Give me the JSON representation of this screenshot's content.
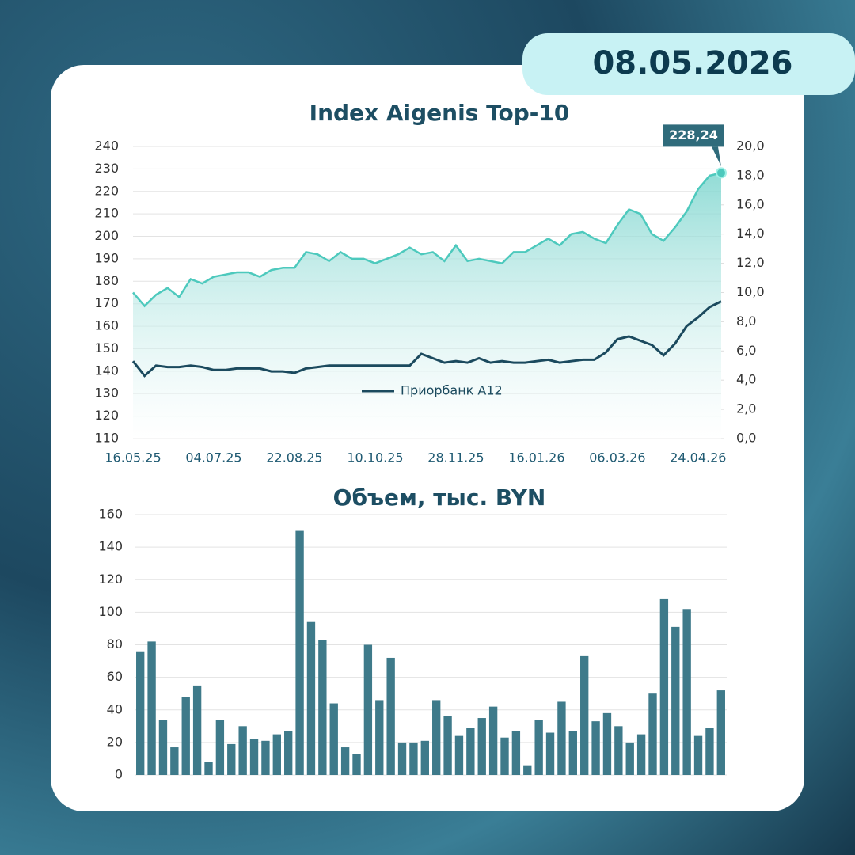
{
  "date": "08.05.2026",
  "chart_data": [
    {
      "type": "line",
      "title": "Index Aigenis Top-10",
      "categories": [
        "16.05.25",
        null,
        null,
        null,
        null,
        null,
        null,
        "04.07.25",
        null,
        null,
        null,
        null,
        null,
        null,
        "22.08.25",
        null,
        null,
        null,
        null,
        null,
        null,
        "10.10.25",
        null,
        null,
        null,
        null,
        null,
        null,
        "28.11.25",
        null,
        null,
        null,
        null,
        null,
        null,
        "16.01.26",
        null,
        null,
        null,
        null,
        null,
        null,
        "06.03.26",
        null,
        null,
        null,
        null,
        null,
        null,
        "24.04.26",
        null,
        null
      ],
      "series": [
        {
          "color": "#4dc9bd",
          "fill": true,
          "values": [
            175,
            169,
            174,
            177,
            173,
            181,
            179,
            182,
            183,
            184,
            184,
            182,
            185,
            186,
            186,
            193,
            192,
            189,
            193,
            190,
            190,
            188,
            190,
            192,
            195,
            192,
            193,
            189,
            196,
            189,
            190,
            189,
            188,
            193,
            193,
            196,
            199,
            196,
            201,
            202,
            199,
            197,
            205,
            212,
            210,
            201,
            198,
            204,
            211,
            221,
            227,
            228.24
          ],
          "value_labels": [
            null,
            null,
            null,
            null,
            null,
            null,
            null,
            null,
            null,
            null,
            null,
            null,
            null,
            null,
            null,
            null,
            null,
            null,
            null,
            null,
            null,
            null,
            null,
            null,
            null,
            null,
            null,
            null,
            null,
            null,
            null,
            null,
            null,
            null,
            null,
            null,
            null,
            null,
            null,
            null,
            null,
            null,
            null,
            null,
            null,
            null,
            null,
            null,
            null,
            null,
            null,
            "228,24"
          ]
        },
        {
          "name": "Приорбанк A12",
          "color": "#1b4a5e",
          "axis": "y2",
          "values": [
            5.3,
            4.3,
            5.0,
            4.9,
            4.9,
            5.0,
            4.9,
            4.7,
            4.7,
            4.8,
            4.8,
            4.8,
            4.6,
            4.6,
            4.5,
            4.8,
            4.9,
            5.0,
            5.0,
            5.0,
            5.0,
            5.0,
            5.0,
            5.0,
            5.0,
            5.8,
            5.5,
            5.2,
            5.3,
            5.2,
            5.5,
            5.2,
            5.3,
            5.2,
            5.2,
            5.3,
            5.4,
            5.2,
            5.3,
            5.4,
            5.4,
            5.9,
            6.8,
            7.0,
            6.7,
            6.4,
            5.7,
            6.5,
            7.7,
            8.3,
            9.0,
            9.4
          ]
        }
      ],
      "ylim": [
        110,
        240
      ],
      "yticks": [
        110,
        120,
        130,
        140,
        150,
        160,
        170,
        180,
        190,
        200,
        210,
        220,
        230,
        240
      ],
      "y2lim": [
        0,
        20
      ],
      "y2ticks": [
        {
          "value": 0,
          "label": "0,0"
        },
        {
          "value": 2,
          "label": "2,0"
        },
        {
          "value": 4,
          "label": "4,0"
        },
        {
          "value": 6,
          "label": "6,0"
        },
        {
          "value": 8,
          "label": "8,0"
        },
        {
          "value": 10,
          "label": "10,0"
        },
        {
          "value": 12,
          "label": "12,0"
        },
        {
          "value": 14,
          "label": "14,0"
        },
        {
          "value": 16,
          "label": "16,0"
        },
        {
          "value": 18,
          "label": "18,0"
        },
        {
          "value": 20,
          "label": "20,0"
        }
      ],
      "grid": true
    },
    {
      "type": "bar",
      "title": "Объем, тыс. BYN",
      "color": "#3e7a8a",
      "values": [
        76,
        82,
        34,
        17,
        48,
        55,
        8,
        34,
        19,
        30,
        22,
        21,
        25,
        27,
        150,
        94,
        83,
        44,
        17,
        13,
        80,
        46,
        72,
        20,
        20,
        21,
        46,
        36,
        24,
        29,
        35,
        42,
        23,
        27,
        6,
        34,
        26,
        45,
        27,
        73,
        33,
        38,
        30,
        20,
        25,
        50,
        108,
        91,
        102,
        24,
        29,
        52
      ],
      "ylim": [
        0,
        160
      ],
      "yticks": [
        0,
        20,
        40,
        60,
        80,
        100,
        120,
        140,
        160
      ],
      "grid": true
    }
  ]
}
